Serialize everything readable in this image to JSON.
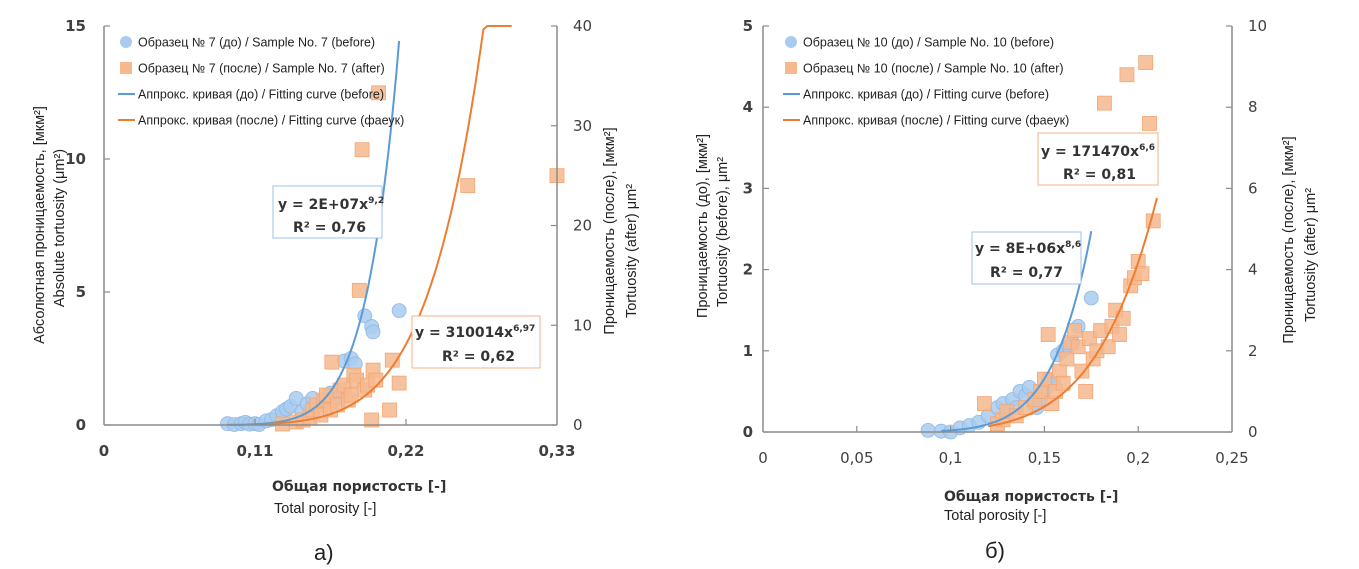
{
  "colors": {
    "before": "#5b9bd5",
    "before_fill": "#a9cbef",
    "after": "#ed7d31",
    "after_fill": "#f6b88e",
    "axis": "#8c8c8c"
  },
  "chart_data": [
    {
      "id": "a",
      "type": "scatter",
      "caption": "а)",
      "xlabel_ru": "Общая пористость [-]",
      "xlabel_en": "Total porosity [-]",
      "ylabel_ru": "Абсолютная проницаемость, [мкм²]",
      "ylabel_en": "Absolute tortuosity (μm²)",
      "y2label_ru": "Проницаемость (после), [мкм²]",
      "y2label_en": "Tortuosity (after) μm²",
      "xlim": [
        0,
        0.33
      ],
      "ylim": [
        0,
        15
      ],
      "y2lim": [
        0,
        40
      ],
      "xticks": [
        "0",
        "0,11",
        "0,22",
        "0,33"
      ],
      "xtick_values": [
        0,
        0.11,
        0.22,
        0.33
      ],
      "yticks": [
        "0",
        "5",
        "10",
        "15"
      ],
      "ytick_values": [
        0,
        5,
        10,
        15
      ],
      "y2ticks": [
        "0",
        "10",
        "20",
        "30",
        "40"
      ],
      "y2tick_values": [
        0,
        10,
        20,
        30,
        40
      ],
      "legend": [
        "Образец № 7 (до) / Sample No. 7 (before)",
        "Образец № 7 (после) / Sample No. 7 (after)",
        "Аппрокс. кривая (до) / Fitting curve (before)",
        "Аппрокс. кривая (после) / Fitting curve (фаеук)"
      ],
      "legend_position": "top-left",
      "series": [
        {
          "name": "before",
          "axis": "left",
          "points": [
            [
              0.09,
              0.05
            ],
            [
              0.095,
              0.02
            ],
            [
              0.1,
              0.05
            ],
            [
              0.103,
              0.1
            ],
            [
              0.106,
              0.03
            ],
            [
              0.11,
              0.05
            ],
            [
              0.113,
              0.02
            ],
            [
              0.118,
              0.15
            ],
            [
              0.122,
              0.2
            ],
            [
              0.126,
              0.35
            ],
            [
              0.13,
              0.5
            ],
            [
              0.133,
              0.6
            ],
            [
              0.136,
              0.7
            ],
            [
              0.14,
              1.0
            ],
            [
              0.144,
              0.5
            ],
            [
              0.148,
              0.8
            ],
            [
              0.152,
              1.0
            ],
            [
              0.16,
              0.9
            ],
            [
              0.165,
              1.2
            ],
            [
              0.17,
              1.0
            ],
            [
              0.175,
              2.4
            ],
            [
              0.18,
              2.5
            ],
            [
              0.183,
              2.3
            ],
            [
              0.19,
              4.1
            ],
            [
              0.195,
              3.7
            ],
            [
              0.196,
              3.5
            ],
            [
              0.215,
              4.3
            ]
          ]
        },
        {
          "name": "after",
          "axis": "right",
          "points": [
            [
              0.13,
              0.1
            ],
            [
              0.14,
              0.3
            ],
            [
              0.145,
              0.5
            ],
            [
              0.15,
              0.8
            ],
            [
              0.152,
              1.5
            ],
            [
              0.155,
              2.0
            ],
            [
              0.158,
              1.0
            ],
            [
              0.16,
              2.5
            ],
            [
              0.162,
              3.0
            ],
            [
              0.165,
              1.5
            ],
            [
              0.166,
              6.3
            ],
            [
              0.17,
              2.0
            ],
            [
              0.172,
              3.5
            ],
            [
              0.175,
              4.0
            ],
            [
              0.178,
              2.5
            ],
            [
              0.18,
              3.0
            ],
            [
              0.182,
              5.0
            ],
            [
              0.184,
              4.5
            ],
            [
              0.186,
              13.5
            ],
            [
              0.188,
              27.6
            ],
            [
              0.19,
              3.5
            ],
            [
              0.192,
              4.0
            ],
            [
              0.195,
              0.5
            ],
            [
              0.196,
              5.5
            ],
            [
              0.198,
              4.5
            ],
            [
              0.2,
              33.3
            ],
            [
              0.208,
              1.5
            ],
            [
              0.21,
              6.5
            ],
            [
              0.215,
              4.2
            ],
            [
              0.265,
              24.0
            ],
            [
              0.33,
              25.0
            ]
          ]
        }
      ],
      "fits": [
        {
          "name": "Fitting curve (before)",
          "equation": "y = 2E+07x",
          "exponent": "9,2",
          "r2_label": "R² = 0,76",
          "a": 20000000.0,
          "b": 9.2,
          "xrange": [
            0.09,
            0.215
          ],
          "axis": "left"
        },
        {
          "name": "Fitting curve (after)",
          "equation": "y = 310014x",
          "exponent": "6,97",
          "r2_label": "R² = 0,62",
          "a": 310014,
          "b": 6.97,
          "xrange": [
            0.12,
            0.297
          ],
          "axis": "right"
        }
      ]
    },
    {
      "id": "b",
      "type": "scatter",
      "caption": "б)",
      "xlabel_ru": "Общая пористость [-]",
      "xlabel_en": "Total porosity [-]",
      "ylabel_ru": "Проницаемость (до), [мкм²]",
      "ylabel_en": "Tortuosity (before), μm²",
      "y2label_ru": "Проницаемость (после), [мкм²]",
      "y2label_en": "Tortuosity (after) μm²",
      "xlim": [
        0,
        0.25
      ],
      "ylim": [
        0,
        5
      ],
      "y2lim": [
        0,
        10
      ],
      "xticks": [
        "0",
        "0,05",
        "0,1",
        "0,15",
        "0,2",
        "0,25"
      ],
      "xtick_values": [
        0,
        0.05,
        0.1,
        0.15,
        0.2,
        0.25
      ],
      "yticks": [
        "0",
        "1",
        "2",
        "3",
        "4",
        "5"
      ],
      "ytick_values": [
        0,
        1,
        2,
        3,
        4,
        5
      ],
      "y2ticks": [
        "0",
        "2",
        "4",
        "6",
        "8",
        "10"
      ],
      "y2tick_values": [
        0,
        2,
        4,
        6,
        8,
        10
      ],
      "legend": [
        "Образец № 10 (до) / Sample No. 10 (before)",
        "Образец № 10 (после) / Sample No. 10 (after)",
        "Аппрокс. кривая (до) / Fitting curve (before)",
        "Аппрокс. кривая (после) / Fitting curve (фаеук)"
      ],
      "legend_position": "top-left",
      "series": [
        {
          "name": "before",
          "axis": "left",
          "points": [
            [
              0.088,
              0.02
            ],
            [
              0.095,
              0.01
            ],
            [
              0.1,
              0.0
            ],
            [
              0.105,
              0.05
            ],
            [
              0.11,
              0.08
            ],
            [
              0.115,
              0.12
            ],
            [
              0.12,
              0.2
            ],
            [
              0.125,
              0.3
            ],
            [
              0.128,
              0.35
            ],
            [
              0.13,
              0.25
            ],
            [
              0.133,
              0.4
            ],
            [
              0.135,
              0.3
            ],
            [
              0.137,
              0.5
            ],
            [
              0.14,
              0.45
            ],
            [
              0.142,
              0.55
            ],
            [
              0.144,
              0.35
            ],
            [
              0.146,
              0.3
            ],
            [
              0.148,
              0.4
            ],
            [
              0.15,
              0.5
            ],
            [
              0.152,
              0.65
            ],
            [
              0.155,
              0.6
            ],
            [
              0.157,
              0.95
            ],
            [
              0.16,
              1.0
            ],
            [
              0.163,
              1.05
            ],
            [
              0.165,
              1.1
            ],
            [
              0.168,
              1.3
            ],
            [
              0.175,
              1.65
            ]
          ]
        },
        {
          "name": "after",
          "axis": "right",
          "points": [
            [
              0.118,
              0.7
            ],
            [
              0.125,
              0.2
            ],
            [
              0.128,
              0.3
            ],
            [
              0.13,
              0.5
            ],
            [
              0.135,
              0.4
            ],
            [
              0.14,
              0.6
            ],
            [
              0.145,
              0.8
            ],
            [
              0.148,
              1.0
            ],
            [
              0.15,
              1.3
            ],
            [
              0.152,
              2.4
            ],
            [
              0.154,
              0.7
            ],
            [
              0.156,
              1.0
            ],
            [
              0.158,
              1.5
            ],
            [
              0.16,
              1.2
            ],
            [
              0.162,
              1.8
            ],
            [
              0.164,
              2.2
            ],
            [
              0.166,
              2.5
            ],
            [
              0.168,
              2.1
            ],
            [
              0.17,
              1.5
            ],
            [
              0.172,
              1.0
            ],
            [
              0.174,
              2.3
            ],
            [
              0.176,
              1.8
            ],
            [
              0.178,
              2.0
            ],
            [
              0.18,
              2.5
            ],
            [
              0.182,
              8.1
            ],
            [
              0.184,
              2.1
            ],
            [
              0.186,
              2.6
            ],
            [
              0.188,
              3.0
            ],
            [
              0.19,
              2.4
            ],
            [
              0.192,
              2.8
            ],
            [
              0.194,
              8.8
            ],
            [
              0.196,
              3.6
            ],
            [
              0.198,
              3.8
            ],
            [
              0.2,
              4.2
            ],
            [
              0.202,
              3.9
            ],
            [
              0.204,
              9.1
            ],
            [
              0.206,
              7.6
            ],
            [
              0.208,
              5.2
            ]
          ]
        }
      ],
      "fits": [
        {
          "name": "Fitting curve (before)",
          "equation": "y = 8E+06x",
          "exponent": "8,6",
          "r2_label": "R² = 0,77",
          "a": 8000000.0,
          "b": 8.6,
          "xrange": [
            0.095,
            0.175
          ],
          "axis": "left"
        },
        {
          "name": "Fitting curve (after)",
          "equation": "y = 171470x",
          "exponent": "6,6",
          "r2_label": "R² = 0,81",
          "a": 171470,
          "b": 6.6,
          "xrange": [
            0.12,
            0.21
          ],
          "axis": "right"
        }
      ]
    }
  ]
}
